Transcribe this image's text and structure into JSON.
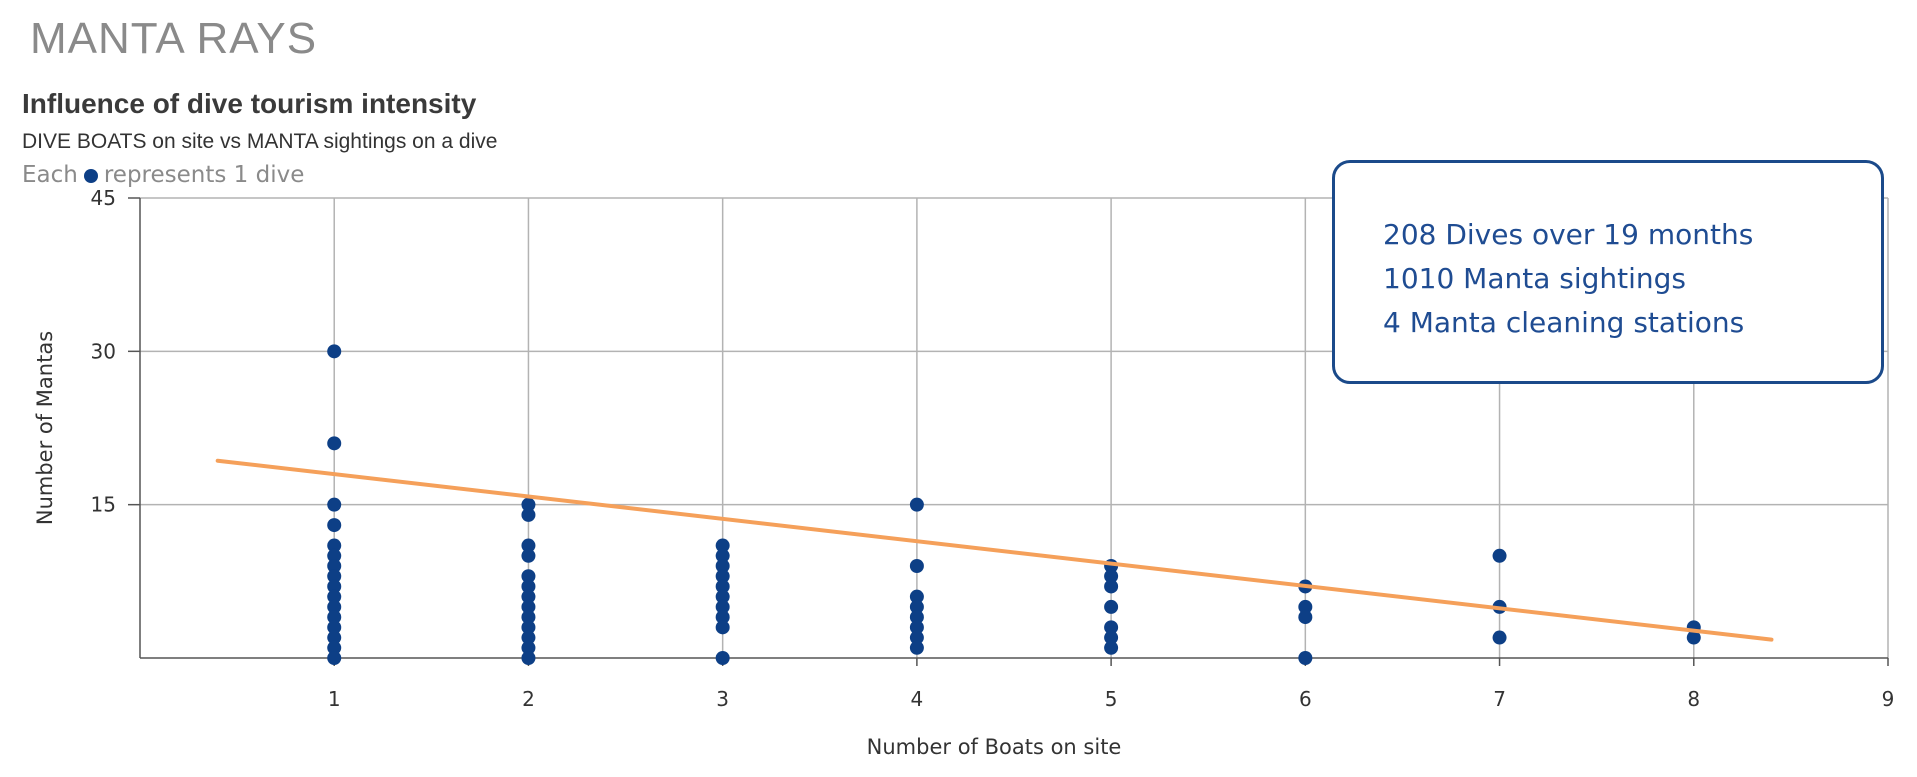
{
  "page": {
    "title": "MANTA RAYS"
  },
  "chart": {
    "title": "Influence of dive tourism intensity",
    "subtitle": "DIVE BOATS on site vs MANTA sightings on a dive",
    "legend_prefix": "Each",
    "legend_suffix": "represents 1 dive"
  },
  "info_box": {
    "lines": [
      "208 Dives over 19 months",
      "1010 Manta sightings",
      "4 Manta cleaning stations"
    ]
  },
  "colors": {
    "point": "#0d3f86",
    "trend": "#f5a05a",
    "grid": "#b3b3b3",
    "axis": "#555555",
    "box_border": "#1b4a8a",
    "box_text": "#1f4c92"
  },
  "chart_data": {
    "type": "scatter",
    "title": "Influence of dive tourism intensity",
    "subtitle": "DIVE BOATS on site vs MANTA sightings on a dive",
    "xlabel": "Number of Boats on site",
    "ylabel": "Number of Mantas",
    "xlim": [
      0,
      9
    ],
    "ylim": [
      0,
      45
    ],
    "xticks": [
      1,
      2,
      3,
      4,
      5,
      6,
      7,
      8,
      9
    ],
    "yticks": [
      15,
      30,
      45
    ],
    "grid": true,
    "series": [
      {
        "x": [
          1,
          1,
          1,
          1,
          1,
          1,
          1,
          1,
          1,
          1,
          1,
          1,
          1,
          1,
          1,
          1,
          2,
          2,
          2,
          2,
          2,
          2,
          2,
          2,
          2,
          2,
          2,
          2,
          2,
          3,
          3,
          3,
          3,
          3,
          3,
          3,
          3,
          3,
          3,
          4,
          4,
          4,
          4,
          4,
          4,
          4,
          4,
          5,
          5,
          5,
          5,
          5,
          5,
          5,
          6,
          6,
          6,
          6,
          7,
          7,
          7,
          8,
          8
        ],
        "y": [
          30,
          21,
          15,
          13,
          11,
          10,
          9,
          8,
          7,
          6,
          5,
          4,
          3,
          2,
          1,
          0,
          15,
          14,
          11,
          10,
          8,
          7,
          6,
          5,
          4,
          3,
          2,
          1,
          0,
          11,
          10,
          9,
          8,
          7,
          6,
          5,
          4,
          3,
          0,
          15,
          9,
          6,
          5,
          4,
          3,
          2,
          1,
          9,
          8,
          7,
          5,
          3,
          2,
          1,
          7,
          5,
          4,
          0,
          10,
          5,
          2,
          3,
          2
        ]
      }
    ],
    "trendline": {
      "x": [
        0.4,
        8.4
      ],
      "y": [
        19.3,
        1.8
      ]
    }
  }
}
